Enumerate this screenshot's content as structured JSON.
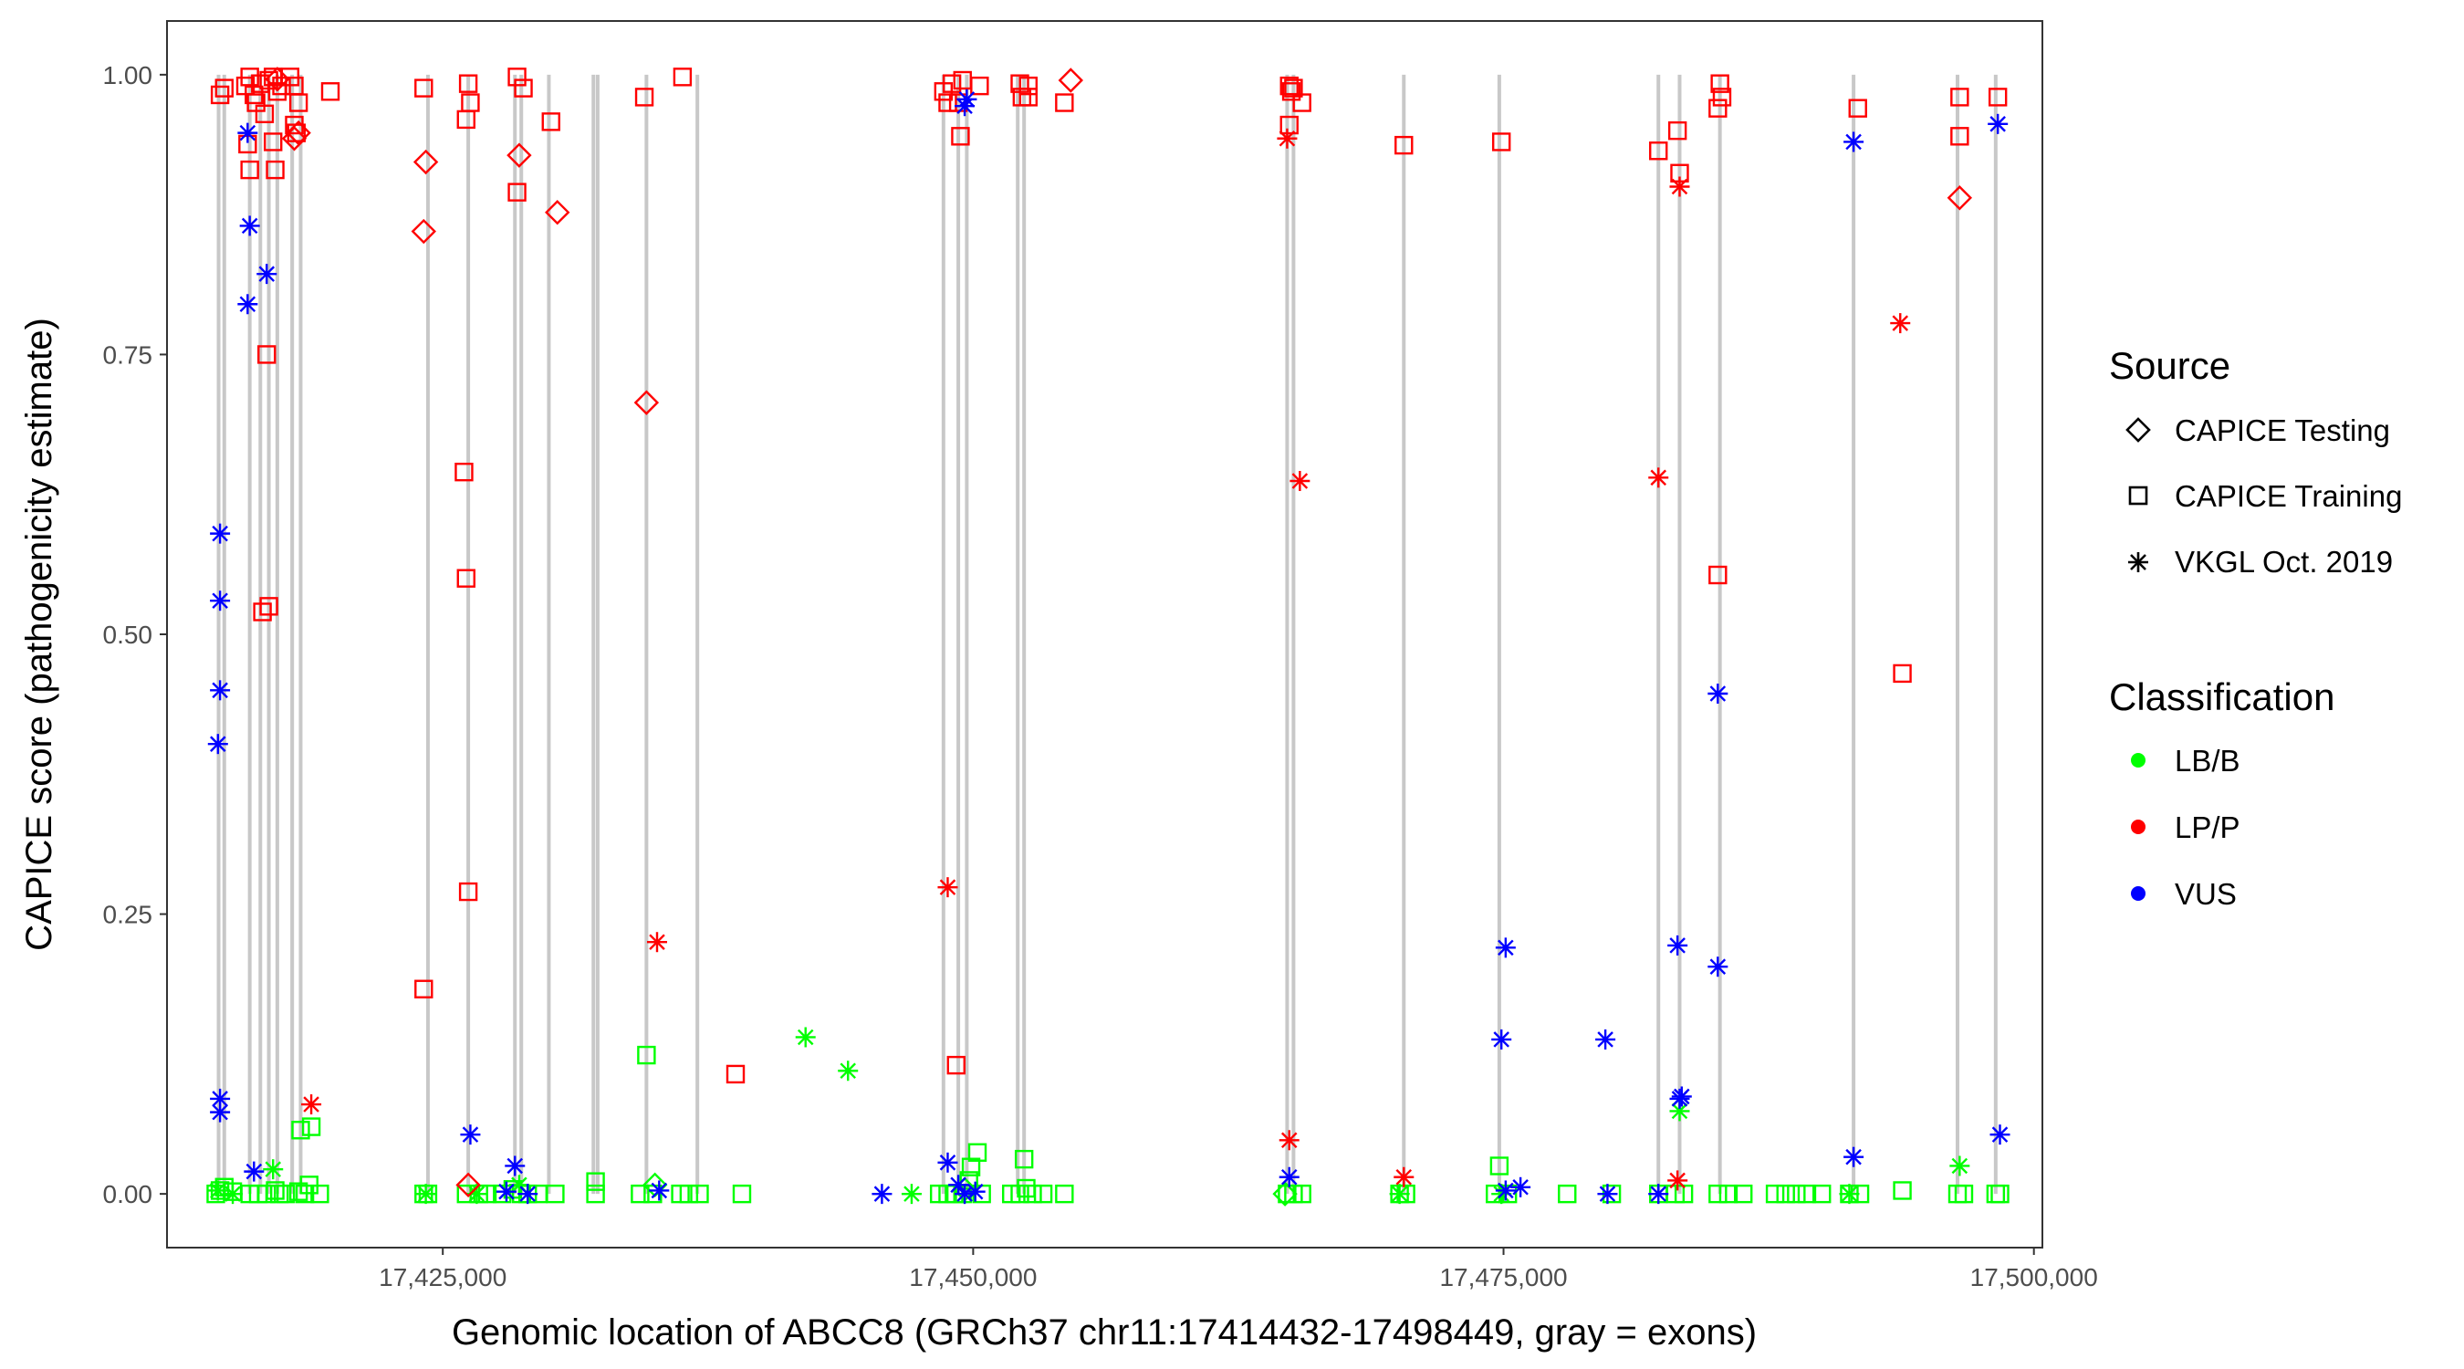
{
  "chart_data": {
    "type": "scatter",
    "xlabel": "Genomic location of ABCC8 (GRCh37 chr11:17414432-17498449, gray = exons)",
    "ylabel": "CAPICE score (pathogenicity estimate)",
    "xlim": [
      17412000,
      17500400
    ],
    "ylim": [
      -0.048,
      1.048
    ],
    "x_ticks": [
      17425000,
      17450000,
      17475000,
      17500000
    ],
    "x_tick_labels": [
      "17,425,000",
      "17,450,000",
      "17,475,000",
      "17,500,000"
    ],
    "y_ticks": [
      0,
      0.25,
      0.5,
      0.75,
      1
    ],
    "y_tick_labels": [
      "0.00",
      "0.25",
      "0.50",
      "0.75",
      "1.00"
    ],
    "exons": [
      17414432,
      17414700,
      17415900,
      17416400,
      17416800,
      17417200,
      17417900,
      17418300,
      17424300,
      17426200,
      17428400,
      17428700,
      17430000,
      17432100,
      17432300,
      17434600,
      17437000,
      17448600,
      17449300,
      17449700,
      17452100,
      17452400,
      17464800,
      17465100,
      17470300,
      17474800,
      17482300,
      17483300,
      17485200,
      17491500,
      17496400,
      17498200
    ],
    "legend": {
      "source_title": "Source",
      "source_items": [
        {
          "label": "CAPICE Testing",
          "shape": "diamond"
        },
        {
          "label": "CAPICE Training",
          "shape": "square"
        },
        {
          "label": "VKGL Oct. 2019",
          "shape": "star"
        }
      ],
      "class_title": "Classification",
      "class_items": [
        {
          "label": "LB/B",
          "color": "#00ff00"
        },
        {
          "label": "LP/P",
          "color": "#ff0000"
        },
        {
          "label": "VUS",
          "color": "#0000ff"
        }
      ]
    },
    "series": [
      {
        "name": "LP/P - CAPICE Training",
        "source": "CAPICE Training",
        "classification": "LP/P",
        "points": [
          [
            17414500,
            0.982
          ],
          [
            17414700,
            0.988
          ],
          [
            17415700,
            0.99
          ],
          [
            17415900,
            0.998
          ],
          [
            17416100,
            0.982
          ],
          [
            17416200,
            0.975
          ],
          [
            17416400,
            0.992
          ],
          [
            17416600,
            0.965
          ],
          [
            17416800,
            0.995
          ],
          [
            17417000,
            0.998
          ],
          [
            17417200,
            0.985
          ],
          [
            17417400,
            0.99
          ],
          [
            17417800,
            0.998
          ],
          [
            17418000,
            0.99
          ],
          [
            17418200,
            0.975
          ],
          [
            17419700,
            0.985
          ],
          [
            17415800,
            0.938
          ],
          [
            17415900,
            0.915
          ],
          [
            17417000,
            0.94
          ],
          [
            17417100,
            0.915
          ],
          [
            17418100,
            0.948
          ],
          [
            17418000,
            0.955
          ],
          [
            17416700,
            0.75
          ],
          [
            17416800,
            0.525
          ],
          [
            17416500,
            0.52
          ],
          [
            17424100,
            0.988
          ],
          [
            17426200,
            0.992
          ],
          [
            17426300,
            0.975
          ],
          [
            17426100,
            0.96
          ],
          [
            17426000,
            0.645
          ],
          [
            17426100,
            0.55
          ],
          [
            17426200,
            0.27
          ],
          [
            17424100,
            0.183
          ],
          [
            17428500,
            0.998
          ],
          [
            17428800,
            0.988
          ],
          [
            17428500,
            0.895
          ],
          [
            17430100,
            0.958
          ],
          [
            17434500,
            0.98
          ],
          [
            17436300,
            0.998
          ],
          [
            17438800,
            0.107
          ],
          [
            17448600,
            0.985
          ],
          [
            17449000,
            0.992
          ],
          [
            17449500,
            0.995
          ],
          [
            17448800,
            0.975
          ],
          [
            17449300,
            0.975
          ],
          [
            17449400,
            0.945
          ],
          [
            17450300,
            0.99
          ],
          [
            17452200,
            0.992
          ],
          [
            17452600,
            0.99
          ],
          [
            17452300,
            0.98
          ],
          [
            17452600,
            0.98
          ],
          [
            17454300,
            0.975
          ],
          [
            17449200,
            0.115
          ],
          [
            17464900,
            0.99
          ],
          [
            17465000,
            0.985
          ],
          [
            17465100,
            0.988
          ],
          [
            17464900,
            0.955
          ],
          [
            17465500,
            0.975
          ],
          [
            17470300,
            0.937
          ],
          [
            17474900,
            0.94
          ],
          [
            17482300,
            0.932
          ],
          [
            17483200,
            0.95
          ],
          [
            17483300,
            0.912
          ],
          [
            17485100,
            0.97
          ],
          [
            17485200,
            0.992
          ],
          [
            17485300,
            0.98
          ],
          [
            17485100,
            0.553
          ],
          [
            17491700,
            0.97
          ],
          [
            17496500,
            0.98
          ],
          [
            17496500,
            0.945
          ],
          [
            17498300,
            0.98
          ],
          [
            17493800,
            0.465
          ]
        ]
      },
      {
        "name": "LP/P - CAPICE Testing",
        "source": "CAPICE Testing",
        "classification": "LP/P",
        "points": [
          [
            17417200,
            0.996
          ],
          [
            17418000,
            0.943
          ],
          [
            17418200,
            0.948
          ],
          [
            17424200,
            0.922
          ],
          [
            17424100,
            0.86
          ],
          [
            17428600,
            0.928
          ],
          [
            17430400,
            0.877
          ],
          [
            17434600,
            0.707
          ],
          [
            17454600,
            0.995
          ],
          [
            17496500,
            0.89
          ],
          [
            17426200,
            0.008
          ]
        ]
      },
      {
        "name": "LP/P - VKGL Oct. 2019",
        "source": "VKGL Oct. 2019",
        "classification": "LP/P",
        "points": [
          [
            17418800,
            0.08
          ],
          [
            17435100,
            0.225
          ],
          [
            17448800,
            0.274
          ],
          [
            17464800,
            0.943
          ],
          [
            17465400,
            0.637
          ],
          [
            17464900,
            0.048
          ],
          [
            17470300,
            0.015
          ],
          [
            17482300,
            0.64
          ],
          [
            17483300,
            0.9
          ],
          [
            17483200,
            0.012
          ],
          [
            17493700,
            0.778
          ]
        ]
      },
      {
        "name": "VUS - VKGL Oct. 2019",
        "source": "VKGL Oct. 2019",
        "classification": "VUS",
        "points": [
          [
            17415800,
            0.948
          ],
          [
            17415900,
            0.865
          ],
          [
            17415800,
            0.795
          ],
          [
            17416700,
            0.822
          ],
          [
            17414500,
            0.59
          ],
          [
            17414500,
            0.53
          ],
          [
            17414500,
            0.45
          ],
          [
            17414400,
            0.402
          ],
          [
            17414500,
            0.085
          ],
          [
            17414500,
            0.073
          ],
          [
            17416100,
            0.02
          ],
          [
            17426300,
            0.053
          ],
          [
            17428400,
            0.025
          ],
          [
            17428000,
            0.002
          ],
          [
            17429000,
            0.0
          ],
          [
            17435200,
            0.003
          ],
          [
            17445700,
            0.0
          ],
          [
            17449700,
            0.978
          ],
          [
            17449600,
            0.972
          ],
          [
            17448800,
            0.028
          ],
          [
            17449300,
            0.008
          ],
          [
            17449600,
            0.0
          ],
          [
            17450100,
            0.002
          ],
          [
            17464900,
            0.015
          ],
          [
            17475100,
            0.22
          ],
          [
            17474900,
            0.138
          ],
          [
            17475100,
            0.003
          ],
          [
            17475800,
            0.006
          ],
          [
            17479800,
            0.138
          ],
          [
            17479900,
            0.0
          ],
          [
            17482300,
            0.0
          ],
          [
            17483200,
            0.222
          ],
          [
            17483300,
            0.085
          ],
          [
            17483400,
            0.087
          ],
          [
            17485100,
            0.447
          ],
          [
            17485100,
            0.203
          ],
          [
            17491500,
            0.94
          ],
          [
            17491500,
            0.033
          ],
          [
            17498300,
            0.956
          ],
          [
            17498400,
            0.053
          ]
        ]
      },
      {
        "name": "LB/B - CAPICE Training",
        "source": "CAPICE Training",
        "classification": "LB/B",
        "points": [
          [
            17414300,
            0.0
          ],
          [
            17414500,
            0.003
          ],
          [
            17414700,
            0.006
          ],
          [
            17415100,
            0.002
          ],
          [
            17415900,
            0.0
          ],
          [
            17416300,
            0.0
          ],
          [
            17416700,
            0.0
          ],
          [
            17417100,
            0.003
          ],
          [
            17417300,
            0.0
          ],
          [
            17417600,
            0.0
          ],
          [
            17418200,
            0.002
          ],
          [
            17418500,
            0.0
          ],
          [
            17418700,
            0.008
          ],
          [
            17419200,
            0.0
          ],
          [
            17418300,
            0.057
          ],
          [
            17418800,
            0.06
          ],
          [
            17424100,
            0.0
          ],
          [
            17424300,
            0.0
          ],
          [
            17426100,
            0.0
          ],
          [
            17426700,
            0.0
          ],
          [
            17427100,
            0.0
          ],
          [
            17427800,
            0.0
          ],
          [
            17428300,
            0.004
          ],
          [
            17428700,
            0.0
          ],
          [
            17429000,
            0.0
          ],
          [
            17429500,
            0.0
          ],
          [
            17430300,
            0.0
          ],
          [
            17432200,
            0.0
          ],
          [
            17432200,
            0.011
          ],
          [
            17434300,
            0.0
          ],
          [
            17434600,
            0.124
          ],
          [
            17434900,
            0.0
          ],
          [
            17436200,
            0.0
          ],
          [
            17436600,
            0.0
          ],
          [
            17437100,
            0.0
          ],
          [
            17439100,
            0.0
          ],
          [
            17448400,
            0.0
          ],
          [
            17448800,
            0.0
          ],
          [
            17449100,
            0.0
          ],
          [
            17449500,
            0.0
          ],
          [
            17449800,
            0.012
          ],
          [
            17449900,
            0.024
          ],
          [
            17450200,
            0.037
          ],
          [
            17450400,
            0.0
          ],
          [
            17451800,
            0.0
          ],
          [
            17452200,
            0.0
          ],
          [
            17452400,
            0.031
          ],
          [
            17452500,
            0.005
          ],
          [
            17452800,
            0.0
          ],
          [
            17453300,
            0.0
          ],
          [
            17454300,
            0.0
          ],
          [
            17464800,
            0.0
          ],
          [
            17465100,
            0.0
          ],
          [
            17465500,
            0.0
          ],
          [
            17470100,
            0.0
          ],
          [
            17470400,
            0.0
          ],
          [
            17474600,
            0.0
          ],
          [
            17474800,
            0.025
          ],
          [
            17475200,
            0.0
          ],
          [
            17478000,
            0.0
          ],
          [
            17480100,
            0.0
          ],
          [
            17482300,
            0.0
          ],
          [
            17483100,
            0.0
          ],
          [
            17483500,
            0.0
          ],
          [
            17485100,
            0.0
          ],
          [
            17485600,
            0.0
          ],
          [
            17486300,
            0.0
          ],
          [
            17487800,
            0.0
          ],
          [
            17488300,
            0.0
          ],
          [
            17488800,
            0.0
          ],
          [
            17489300,
            0.0
          ],
          [
            17490000,
            0.0
          ],
          [
            17491300,
            0.0
          ],
          [
            17491800,
            0.0
          ],
          [
            17493800,
            0.003
          ],
          [
            17496400,
            0.0
          ],
          [
            17496700,
            0.0
          ],
          [
            17498200,
            0.0
          ],
          [
            17498400,
            0.0
          ]
        ]
      },
      {
        "name": "LB/B - CAPICE Testing",
        "source": "CAPICE Testing",
        "classification": "LB/B",
        "points": [
          [
            17435000,
            0.008
          ],
          [
            17449600,
            0.004
          ],
          [
            17464700,
            0.0
          ]
        ]
      },
      {
        "name": "LB/B - VKGL Oct. 2019",
        "source": "VKGL Oct. 2019",
        "classification": "LB/B",
        "points": [
          [
            17414400,
            0.003
          ],
          [
            17415100,
            0.0
          ],
          [
            17417000,
            0.022
          ],
          [
            17424200,
            0.0
          ],
          [
            17426600,
            0.0
          ],
          [
            17428600,
            0.008
          ],
          [
            17442100,
            0.14
          ],
          [
            17444100,
            0.11
          ],
          [
            17447100,
            0.0
          ],
          [
            17470100,
            0.0
          ],
          [
            17474900,
            0.0
          ],
          [
            17483300,
            0.074
          ],
          [
            17491300,
            0.0
          ],
          [
            17496500,
            0.025
          ]
        ]
      }
    ]
  }
}
